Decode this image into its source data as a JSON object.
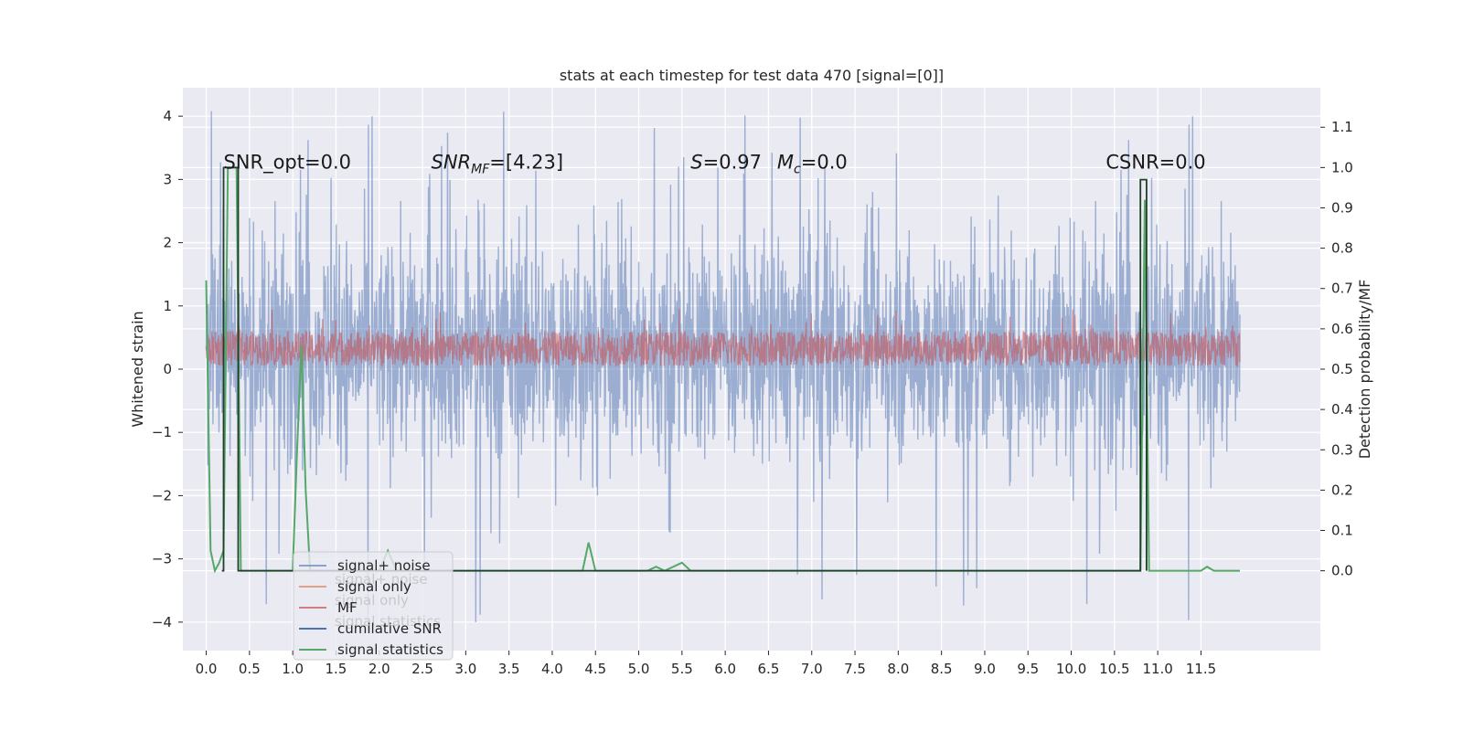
{
  "chart_data": {
    "type": "line",
    "title": "stats at each timestep for test data 470 [signal=[0]]",
    "xlabel": "",
    "ylabel": "Whitened strain",
    "ylabel_right": "Detection probability/MF",
    "xlim": [
      -0.27,
      12.88
    ],
    "ylim": [
      -4.45,
      4.45
    ],
    "ylim_right": [
      -0.198,
      1.198
    ],
    "x_ticks": [
      "0.0",
      "0.5",
      "1.0",
      "1.5",
      "2.0",
      "2.5",
      "3.0",
      "3.5",
      "4.0",
      "4.5",
      "5.0",
      "5.5",
      "6.0",
      "6.5",
      "7.0",
      "7.5",
      "8.0",
      "8.5",
      "9.0",
      "9.5",
      "10.0",
      "10.5",
      "11.0",
      "11.5"
    ],
    "y_ticks": [
      "4",
      "3",
      "2",
      "1",
      "0",
      "−1",
      "−2",
      "−3",
      "−4"
    ],
    "y_ticks_right": [
      "1.1",
      "1.0",
      "0.9",
      "0.8",
      "0.7",
      "0.6",
      "0.5",
      "0.4",
      "0.3",
      "0.2",
      "0.1",
      "0.0"
    ],
    "grid": true,
    "legend_placement": "lower-left",
    "annotations": [
      {
        "text": "SNR_opt=0.0",
        "x": 0.2,
        "y": 3.2
      },
      {
        "text": "SNR_MF=[4.23]",
        "x": 2.6,
        "y": 3.2
      },
      {
        "text": "S=0.97",
        "x": 5.6,
        "y": 3.2
      },
      {
        "text": "M_c=0.0",
        "x": 6.6,
        "y": 3.2
      },
      {
        "text": "CSNR=0.0",
        "x": 10.4,
        "y": 3.2
      }
    ],
    "series": [
      {
        "name": "signal+ noise",
        "axis": "left",
        "color": "#4c72b0",
        "x_range": [
          0.0,
          11.95
        ],
        "band": [
          -1.6,
          2.2
        ],
        "spikes_max": 4.1,
        "spikes_min": -4.1
      },
      {
        "name": "signal only",
        "axis": "left",
        "color": "#dd8452",
        "values_note": ""
      },
      {
        "name": "MF",
        "axis": "left",
        "color": "#c44e52",
        "x_range": [
          0.0,
          11.95
        ],
        "band": [
          0.05,
          0.6
        ]
      },
      {
        "name": "cumilative SNR",
        "axis": "left",
        "color": "#4c72b0"
      },
      {
        "name": "signal statistics",
        "axis": "right",
        "color": "#55a868",
        "x": [
          0.0,
          0.05,
          0.1,
          0.15,
          0.2,
          0.25,
          0.3,
          0.35,
          0.4,
          0.45,
          0.6,
          0.8,
          1.0,
          1.05,
          1.1,
          1.15,
          1.2,
          1.3,
          1.6,
          2.0,
          2.1,
          2.2,
          2.5,
          3.0,
          3.5,
          4.0,
          4.35,
          4.42,
          4.5,
          4.6,
          4.8,
          5.1,
          5.2,
          5.3,
          5.5,
          5.6,
          5.9,
          6.5,
          7.0,
          7.5,
          8.0,
          9.0,
          10.0,
          10.5,
          10.8,
          10.85,
          10.9,
          10.95,
          11.0,
          11.2,
          11.5,
          11.57,
          11.65,
          11.95
        ],
        "values": [
          0.72,
          0.05,
          0.0,
          0.02,
          0.05,
          1.0,
          1.0,
          1.0,
          0.0,
          0.0,
          0.0,
          0.0,
          0.0,
          0.3,
          0.56,
          0.2,
          0.0,
          0.0,
          0.0,
          0.0,
          0.05,
          0.0,
          0.0,
          0.0,
          0.0,
          0.0,
          0.0,
          0.07,
          0.0,
          0.0,
          0.0,
          0.0,
          0.01,
          0.0,
          0.02,
          0.0,
          0.0,
          0.0,
          0.0,
          0.0,
          0.0,
          0.0,
          0.0,
          0.0,
          0.0,
          0.92,
          0.0,
          0.0,
          0.0,
          0.0,
          0.0,
          0.01,
          0.0,
          0.0
        ]
      },
      {
        "name": "",
        "axis": "right",
        "color": "#1f3f2a",
        "x": [
          0.18,
          0.2,
          0.2,
          0.37,
          0.37,
          0.4,
          10.8,
          10.8,
          10.87,
          10.87
        ],
        "values": [
          0.0,
          0.0,
          1.0,
          1.0,
          0.0,
          0.0,
          0.0,
          0.97,
          0.97,
          0.0
        ]
      }
    ],
    "legend_entries": [
      "signal+ noise",
      "signal only",
      "MF",
      "cumilative SNR",
      "signal statistics"
    ],
    "legend_ghost_entries": [
      "signal+ noise",
      "signal only",
      "signal statistics"
    ]
  }
}
